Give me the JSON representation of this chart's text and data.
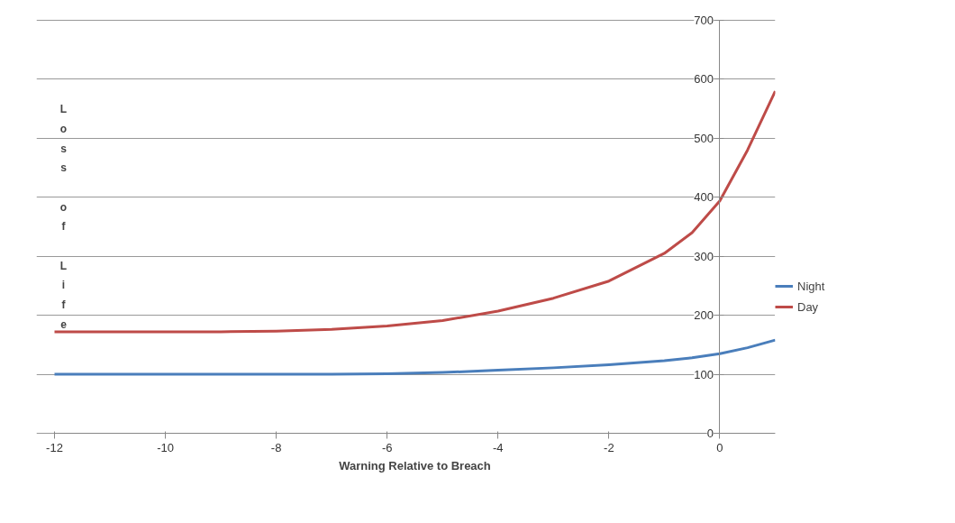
{
  "chart_data": {
    "type": "line",
    "xlabel": "Warning Relative to Breach",
    "ylabel": "Loss of Life",
    "x": [
      -12,
      -10,
      -9,
      -8,
      -7,
      -6,
      -5,
      -4,
      -3,
      -2,
      -1,
      -0.5,
      0,
      0.5,
      1
    ],
    "series": [
      {
        "name": "Night",
        "color": "#4a7ebb",
        "values": [
          100,
          100,
          100,
          100,
          100,
          101,
          103,
          107,
          111,
          116,
          123,
          128,
          135,
          145,
          158
        ]
      },
      {
        "name": "Day",
        "color": "#be4b48",
        "values": [
          172,
          172,
          172,
          173,
          176,
          182,
          191,
          207,
          229,
          258,
          305,
          340,
          394,
          480,
          580
        ]
      }
    ],
    "xlim": [
      -12,
      1
    ],
    "ylim": [
      0,
      700
    ],
    "xticks": [
      -12,
      -10,
      -8,
      -6,
      -4,
      -2,
      0
    ],
    "yticks": [
      0,
      100,
      200,
      300,
      400,
      500,
      600,
      700
    ],
    "grid": "y",
    "legend": "right",
    "marker": "none",
    "line_style": "solid"
  }
}
